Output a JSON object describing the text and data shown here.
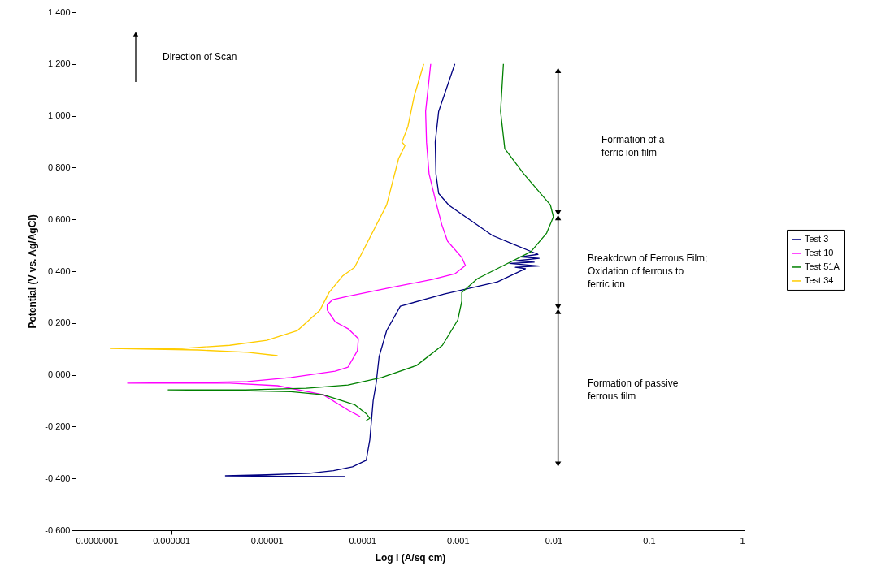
{
  "chart_data": {
    "type": "line",
    "xlabel": "Log I (A/sq cm)",
    "ylabel": "Potential (V vs. Ag/AgCl)",
    "log": "x",
    "grid": false,
    "legend": "right",
    "xlim": [
      1e-07,
      1
    ],
    "ylim": [
      -0.6,
      1.4
    ],
    "xticks": [
      {
        "value": 1e-07,
        "label": "0.0000001"
      },
      {
        "value": 1e-06,
        "label": "0.000001"
      },
      {
        "value": 1e-05,
        "label": "0.00001"
      },
      {
        "value": 0.0001,
        "label": "0.0001"
      },
      {
        "value": 0.001,
        "label": "0.001"
      },
      {
        "value": 0.01,
        "label": "0.01"
      },
      {
        "value": 0.1,
        "label": "0.1"
      },
      {
        "value": 1,
        "label": "1"
      }
    ],
    "yticks": [
      {
        "value": -0.6,
        "label": "-0.600"
      },
      {
        "value": -0.4,
        "label": "-0.400"
      },
      {
        "value": -0.2,
        "label": "-0.200"
      },
      {
        "value": 0,
        "label": "0.000"
      },
      {
        "value": 0.2,
        "label": "0.200"
      },
      {
        "value": 0.4,
        "label": "0.400"
      },
      {
        "value": 0.6,
        "label": "0.600"
      },
      {
        "value": 0.8,
        "label": "0.800"
      },
      {
        "value": 1.0,
        "label": "1.000"
      },
      {
        "value": 1.2,
        "label": "1.200"
      },
      {
        "value": 1.4,
        "label": "1.400"
      }
    ],
    "series": [
      {
        "name": "Test 3",
        "color": "#000080",
        "x": [
          6.6e-05,
          1.6e-05,
          3.7e-06,
          1e-05,
          2.8e-05,
          5e-05,
          7.9e-05,
          0.00011,
          0.00012,
          0.00013,
          0.00014,
          0.00015,
          0.00018,
          0.00025,
          0.00072,
          0.0026,
          0.0051,
          0.004,
          0.0071,
          0.0035,
          0.0063,
          0.004,
          0.0071,
          0.0045,
          0.0069,
          0.0037,
          0.0023,
          0.00081,
          0.00063,
          0.00059,
          0.00058,
          0.00063,
          0.00093
        ],
        "values": [
          -0.393,
          -0.392,
          -0.39,
          -0.386,
          -0.38,
          -0.37,
          -0.355,
          -0.33,
          -0.25,
          -0.1,
          -0.03,
          0.07,
          0.171,
          0.265,
          0.312,
          0.359,
          0.41,
          0.415,
          0.42,
          0.43,
          0.435,
          0.44,
          0.45,
          0.455,
          0.465,
          0.506,
          0.538,
          0.654,
          0.7,
          0.776,
          0.898,
          1.017,
          1.2
        ]
      },
      {
        "name": "Test 10",
        "color": "#ff00ff",
        "x": [
          9.5e-05,
          7.1e-05,
          3.9e-05,
          1.3e-05,
          4.1e-06,
          3.5e-07,
          1.9e-06,
          6.3e-06,
          1.8e-05,
          5.2e-05,
          7.1e-05,
          8.9e-05,
          9.1e-05,
          7.1e-05,
          5.2e-05,
          4.3e-05,
          4.3e-05,
          4.9e-05,
          7.1e-05,
          0.00018,
          0.00054,
          0.00093,
          0.0012,
          0.0011,
          0.00078,
          0.00068,
          0.0006,
          0.0005,
          0.00047,
          0.00046,
          0.00052
        ],
        "values": [
          -0.161,
          -0.136,
          -0.077,
          -0.042,
          -0.032,
          -0.032,
          -0.03,
          -0.026,
          -0.01,
          0.014,
          0.03,
          0.093,
          0.14,
          0.178,
          0.205,
          0.25,
          0.27,
          0.29,
          0.303,
          0.334,
          0.368,
          0.39,
          0.422,
          0.453,
          0.516,
          0.579,
          0.656,
          0.776,
          0.898,
          1.017,
          1.2
        ]
      },
      {
        "name": "Test 51A",
        "color": "#008000",
        "x": [
          0.00011,
          0.00012,
          0.00011,
          8.3e-05,
          3.9e-05,
          1.8e-05,
          4.1e-06,
          9.3e-07,
          6e-06,
          2.6e-05,
          7.1e-05,
          0.00016,
          0.00037,
          0.00069,
          0.001,
          0.0011,
          0.0011,
          0.0016,
          0.003,
          0.0058,
          0.0085,
          0.01,
          0.0093,
          0.0049,
          0.0031,
          0.0028,
          0.003
        ],
        "values": [
          -0.176,
          -0.168,
          -0.15,
          -0.115,
          -0.077,
          -0.065,
          -0.06,
          -0.058,
          -0.058,
          -0.052,
          -0.039,
          -0.01,
          0.036,
          0.114,
          0.212,
          0.284,
          0.318,
          0.371,
          0.422,
          0.475,
          0.547,
          0.61,
          0.656,
          0.776,
          0.873,
          1.017,
          1.2
        ]
      },
      {
        "name": "Test 34",
        "color": "#ffcc00",
        "x": [
          1.3e-05,
          6.3e-06,
          1.9e-06,
          2.3e-07,
          1.3e-06,
          4.1e-06,
          1e-05,
          2.1e-05,
          3.6e-05,
          4.5e-05,
          6.2e-05,
          8.3e-05,
          0.00018,
          0.00024,
          0.00028,
          0.00026,
          0.0003,
          0.00035,
          0.00044
        ],
        "values": [
          0.074,
          0.087,
          0.096,
          0.102,
          0.102,
          0.114,
          0.133,
          0.171,
          0.249,
          0.318,
          0.381,
          0.415,
          0.656,
          0.835,
          0.885,
          0.898,
          0.958,
          1.077,
          1.2
        ]
      },
      {
        "color": "#000000",
        "marker": "triangle",
        "x": [
          0.0112,
          0.0112
        ],
        "values": [
          0.625,
          1.175
        ]
      },
      {
        "color": "#000000",
        "marker": "triangle",
        "x": [
          0.0112,
          0.0112
        ],
        "values": [
          0.262,
          0.607
        ]
      },
      {
        "color": "#000000",
        "marker": "triangle",
        "x": [
          0.0112,
          0.0112
        ],
        "values": [
          -0.345,
          0.245
        ]
      }
    ],
    "annotations": [
      "Direction of Scan",
      "Formation of a\nferric ion film",
      "Breakdown of Ferrous Film;\nOxidation of ferrous to\nferric ion",
      "Formation of passive\nferrous film"
    ]
  }
}
